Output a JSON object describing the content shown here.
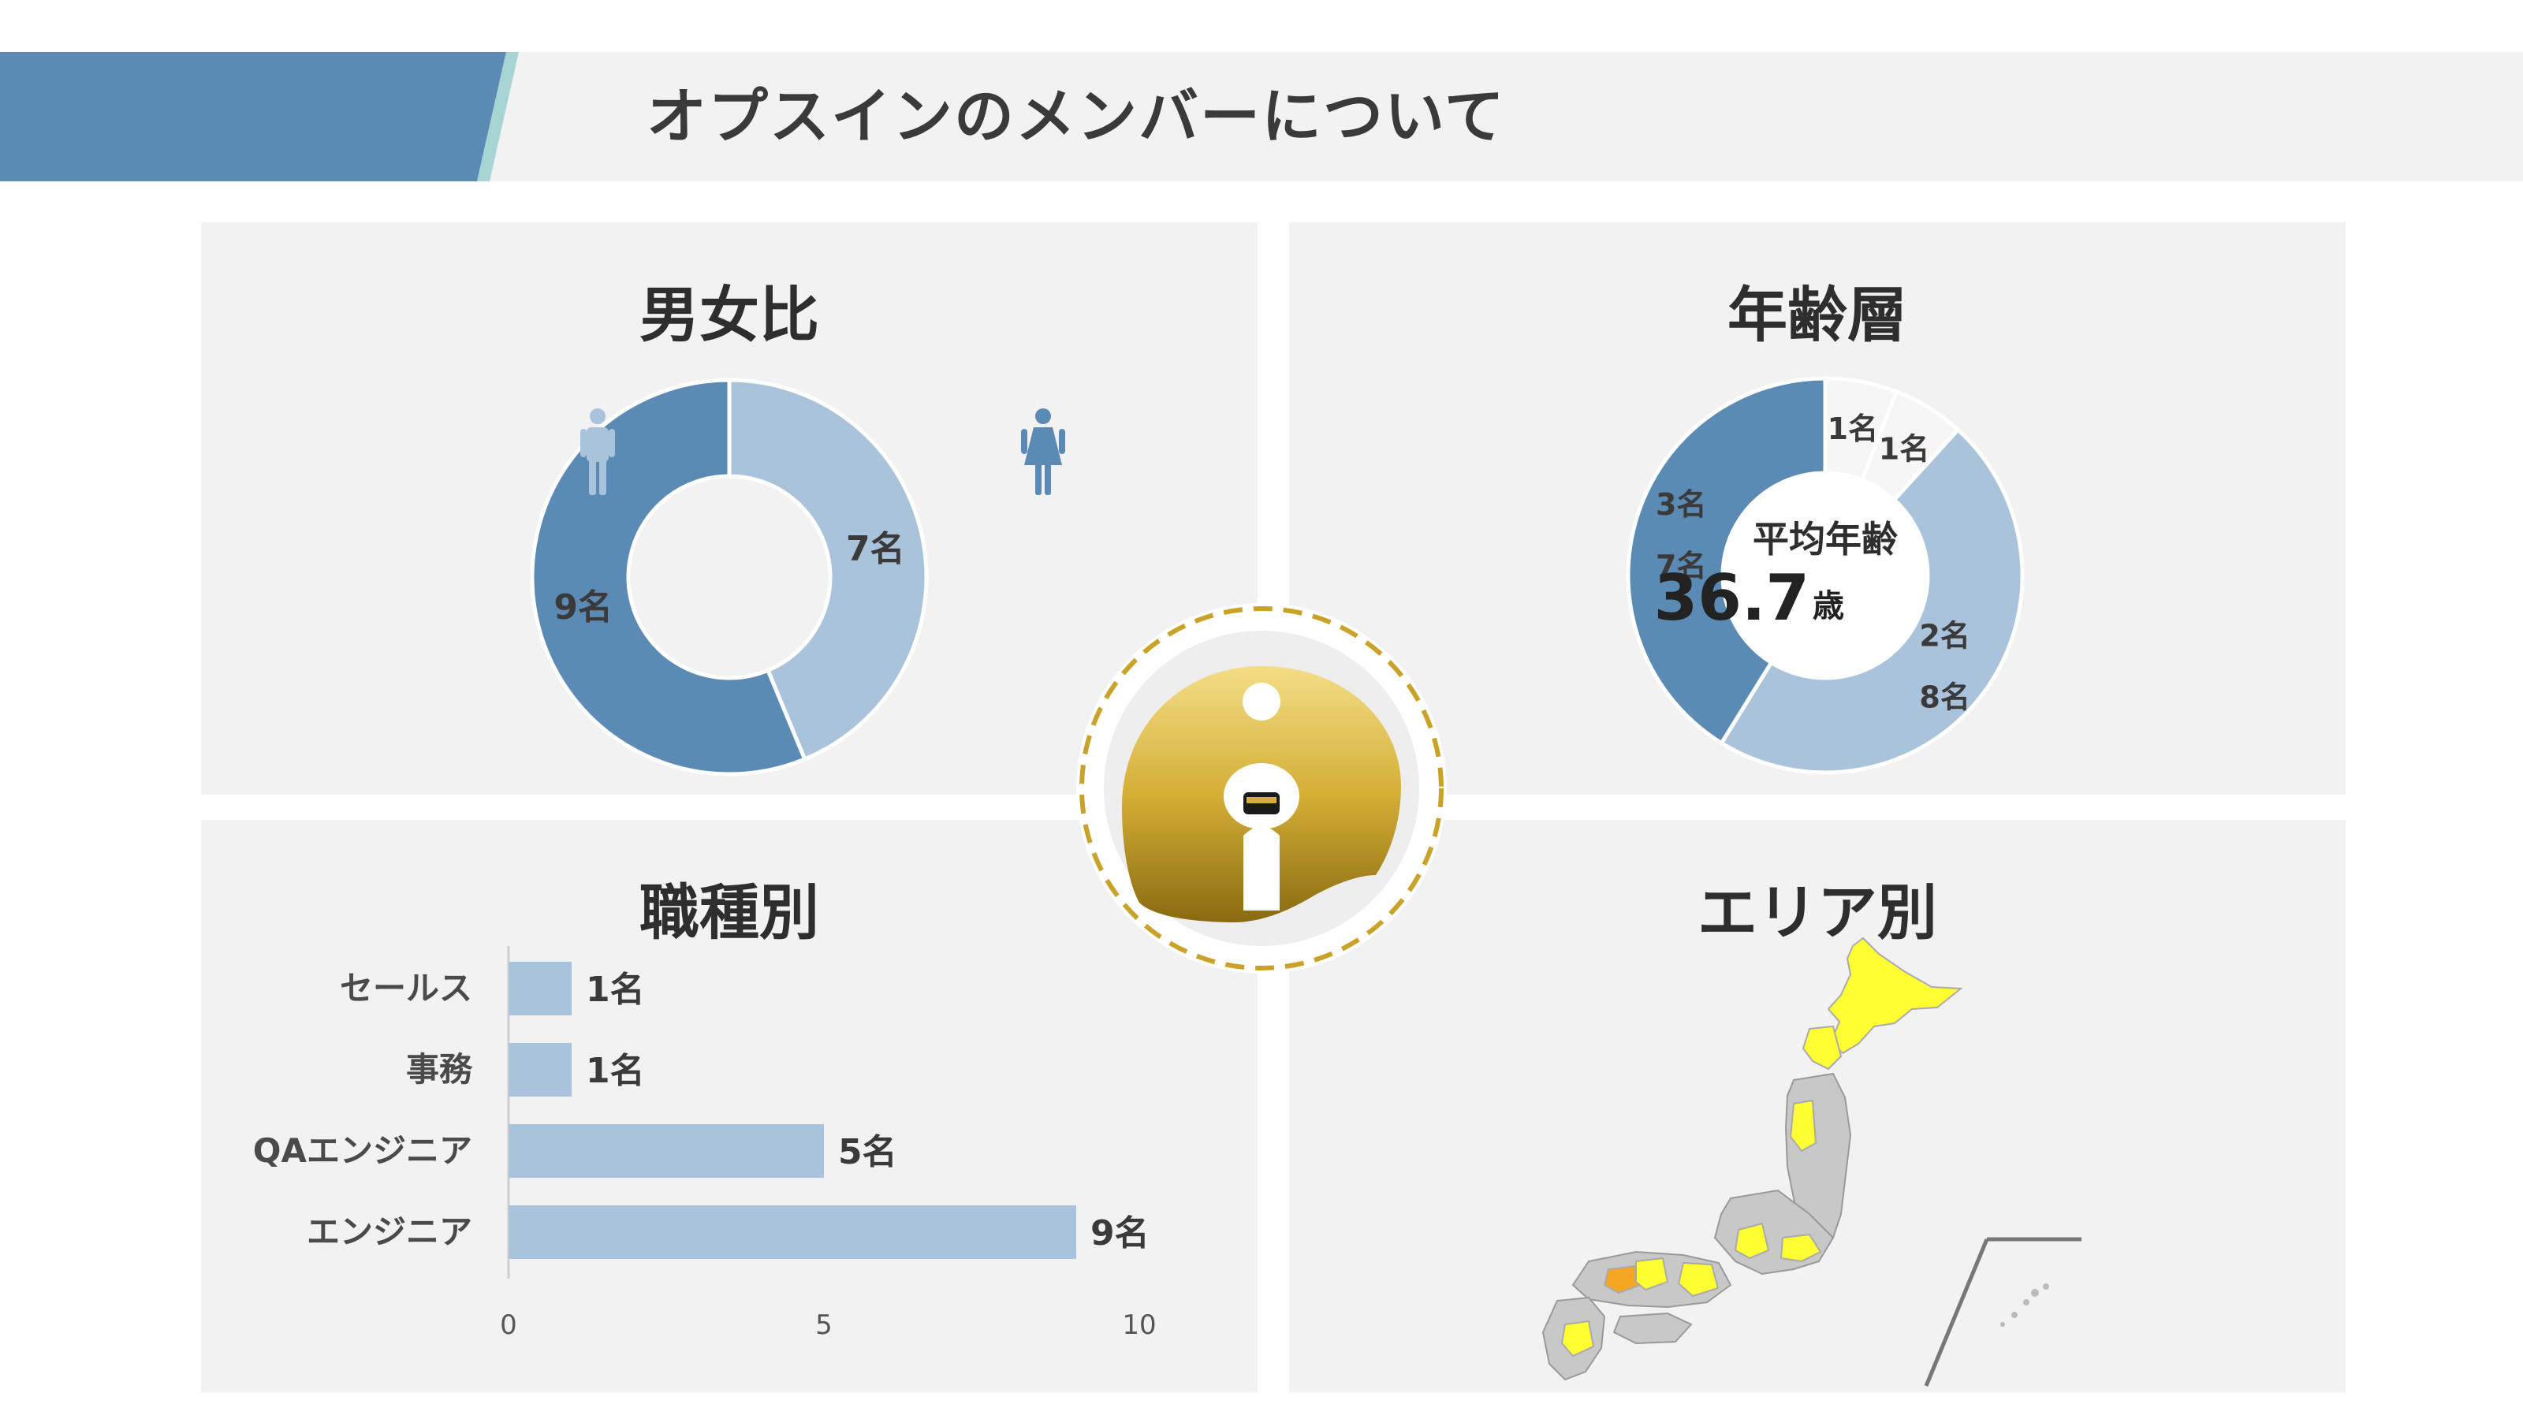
{
  "page": {
    "title": "オプスインのメンバーについて"
  },
  "colors": {
    "dark_blue": "#5b8bb5",
    "light_blue": "#a9c3dc",
    "pale": "#f6f6f6",
    "gold": "#c9a227",
    "highlight_yellow": "#ffff33",
    "highlight_orange": "#f5a623",
    "map_gray": "#c8c8c8"
  },
  "panels": {
    "gender": {
      "title": "男女比"
    },
    "age": {
      "title": "年齢層",
      "center_label": "平均年齢",
      "average_value": "36.7",
      "average_unit": "歳"
    },
    "job": {
      "title": "職種別"
    },
    "area": {
      "title": "エリア別"
    }
  },
  "icons": [
    "male-person-icon",
    "female-person-icon",
    "company-logo-icon"
  ],
  "chart_data": [
    {
      "id": "gender",
      "type": "pie",
      "donut": true,
      "title": "男女比",
      "slices": [
        {
          "value": 7,
          "label": "7名",
          "color": "#a9c3dc",
          "icon": "female-person-icon"
        },
        {
          "value": 9,
          "label": "9名",
          "color": "#5b8bb5",
          "icon": "male-person-icon"
        }
      ]
    },
    {
      "id": "age",
      "type": "pie",
      "donut": true,
      "title": "年齢層",
      "slices": [
        {
          "value": 1,
          "label": "1名",
          "color": "#f6f6f6"
        },
        {
          "value": 1,
          "label": "1名",
          "color": "#f6f6f6"
        },
        {
          "value": 8,
          "label": "2名 8名",
          "color": "#a9c3dc"
        },
        {
          "value": 7,
          "label": "3名 7名",
          "color": "#5b8bb5"
        }
      ],
      "slice_label_lines": [
        [
          "1名"
        ],
        [
          "1名"
        ],
        [
          "2名",
          "8名"
        ],
        [
          "3名",
          "7名"
        ]
      ]
    },
    {
      "id": "job",
      "type": "bar",
      "orientation": "horizontal",
      "title": "職種別",
      "categories": [
        "セールス",
        "事務",
        "QAエンジニア",
        "エンジニア"
      ],
      "values": [
        1,
        1,
        5,
        9
      ],
      "value_labels": [
        "1名",
        "1名",
        "5名",
        "9名"
      ],
      "xlim": [
        0,
        10
      ],
      "xticks": [
        "0",
        "5",
        "10"
      ],
      "color": "#a9c3dc"
    }
  ]
}
